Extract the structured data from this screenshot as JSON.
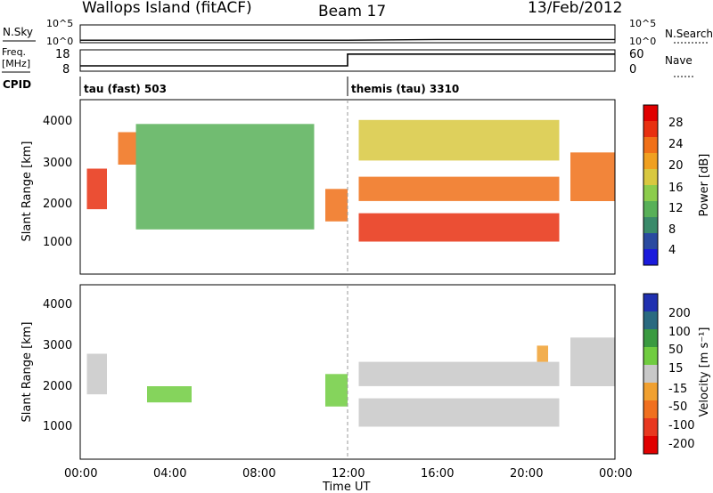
{
  "header": {
    "title": "Wallops Island (fitACF)",
    "beam": "Beam 17",
    "date": "13/Feb/2012"
  },
  "top_panel": {
    "left_label": "N.Sky",
    "right_label": "N.Search",
    "tick_top": "10^5",
    "tick_bottom": "10^0",
    "freq_label": "Freq.",
    "freq_unit": "[MHz]",
    "freq_ticks": [
      "18",
      "8"
    ],
    "nave_label": "Nave",
    "nave_ticks": [
      "60",
      "0"
    ],
    "cpid_label": "CPID",
    "cpid_1": "tau (fast) 503",
    "cpid_2": "themis (tau) 3310"
  },
  "power_panel": {
    "ylabel": "Slant Range [km]",
    "yticks": [
      "4000",
      "3000",
      "2000",
      "1000"
    ],
    "colorbar_label": "Power [dB]",
    "colorbar_ticks": [
      "28",
      "24",
      "20",
      "16",
      "12",
      "8",
      "4"
    ],
    "colors": [
      "#1a1adc",
      "#2a4aa0",
      "#3a8a6a",
      "#58b058",
      "#8ccc4c",
      "#d8c840",
      "#f0a020",
      "#f07018",
      "#e83010",
      "#e00000"
    ]
  },
  "velocity_panel": {
    "ylabel": "Slant Range [km]",
    "yticks": [
      "4000",
      "3000",
      "2000",
      "1000"
    ],
    "colorbar_label": "Velocity [m s⁻¹]",
    "colorbar_ticks": [
      "200",
      "100",
      "50",
      "15",
      "-15",
      "-50",
      "-100",
      "-200"
    ],
    "colors": [
      "#2030b0",
      "#2a6a80",
      "#3a9a40",
      "#70cc40",
      "#c8c8c8",
      "#f0a030",
      "#f07020",
      "#e83820",
      "#e00000"
    ]
  },
  "x_axis": {
    "label": "Time UT",
    "ticks": [
      "00:00",
      "04:00",
      "08:00",
      "12:00",
      "16:00",
      "20:00",
      "00:00"
    ]
  },
  "chart_data": [
    {
      "type": "line",
      "title": "N.Sky",
      "note": "noise level, log scale 10^0 to 10^5",
      "x": [
        "00:00",
        "04:00",
        "08:00",
        "12:00",
        "16:00",
        "20:00",
        "24:00"
      ],
      "series": [
        {
          "name": "N.Sky",
          "values": [
            5,
            5,
            5,
            5,
            8,
            8,
            8
          ]
        }
      ]
    },
    {
      "type": "line",
      "title": "Freq.",
      "x": [
        "00:00",
        "12:00",
        "12:00",
        "24:00"
      ],
      "series": [
        {
          "name": "Freq.",
          "values": [
            10.5,
            10.5,
            16,
            16
          ]
        }
      ],
      "ylim": [
        8,
        18
      ]
    },
    {
      "type": "heatmap",
      "title": "Power [dB]",
      "xlabel": "Time UT",
      "ylabel": "Slant Range [km]",
      "xlim": [
        0,
        24
      ],
      "ylim": [
        200,
        4500
      ],
      "zlim": [
        0,
        30
      ],
      "cells": [
        {
          "t": [
            0.3,
            1.2
          ],
          "r": [
            1800,
            2800
          ],
          "value": 26
        },
        {
          "t": [
            1.7,
            2.5
          ],
          "r": [
            2900,
            3700
          ],
          "value": 22
        },
        {
          "t": [
            2.5,
            10.5
          ],
          "r": [
            1300,
            3900
          ],
          "value": 10
        },
        {
          "t": [
            11.0,
            12.0
          ],
          "r": [
            1500,
            2300
          ],
          "value": 22
        },
        {
          "t": [
            12.5,
            21.5
          ],
          "r": [
            1000,
            1700
          ],
          "value": 26
        },
        {
          "t": [
            12.5,
            21.5
          ],
          "r": [
            2000,
            2600
          ],
          "value": 24
        },
        {
          "t": [
            12.5,
            21.5
          ],
          "r": [
            3000,
            4000
          ],
          "value": 16
        },
        {
          "t": [
            22.0,
            24.0
          ],
          "r": [
            2000,
            3200
          ],
          "value": 24
        }
      ]
    },
    {
      "type": "heatmap",
      "title": "Velocity [m s-1]",
      "xlabel": "Time UT",
      "ylabel": "Slant Range [km]",
      "xlim": [
        0,
        24
      ],
      "ylim": [
        200,
        4500
      ],
      "zlim": [
        -200,
        200
      ],
      "cells": [
        {
          "t": [
            0.3,
            1.2
          ],
          "r": [
            1800,
            2800
          ],
          "value": 0
        },
        {
          "t": [
            3.0,
            5.0
          ],
          "r": [
            1600,
            2000
          ],
          "value": 50
        },
        {
          "t": [
            11.0,
            12.0
          ],
          "r": [
            1500,
            2300
          ],
          "value": 50
        },
        {
          "t": [
            12.5,
            21.5
          ],
          "r": [
            1000,
            1700
          ],
          "value": 0
        },
        {
          "t": [
            12.5,
            21.5
          ],
          "r": [
            2000,
            2600
          ],
          "value": 0
        },
        {
          "t": [
            20.5,
            21.0
          ],
          "r": [
            2600,
            3000
          ],
          "value": -50
        },
        {
          "t": [
            22.0,
            24.0
          ],
          "r": [
            2000,
            3200
          ],
          "value": 0
        }
      ]
    }
  ]
}
